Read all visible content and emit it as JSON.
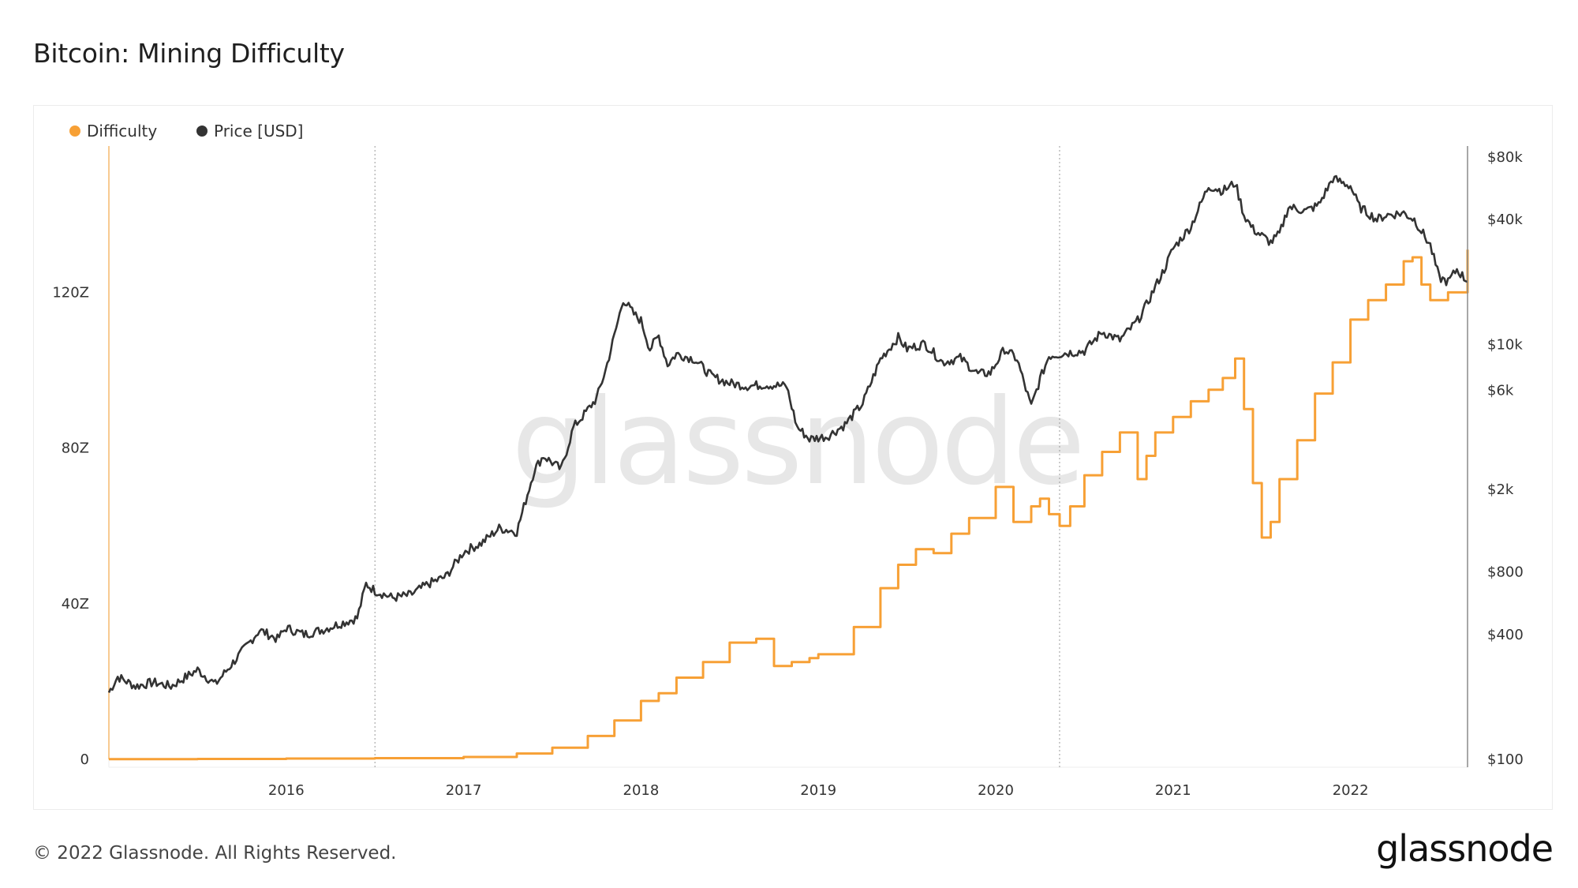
{
  "title": "Bitcoin: Mining Difficulty",
  "legend": {
    "difficulty": "Difficulty",
    "price": "Price [USD]"
  },
  "watermark": "glassnode",
  "footer": {
    "copyright": "© 2022 Glassnode. All Rights Reserved.",
    "logo": "glassnode"
  },
  "colors": {
    "difficulty": "#f7a035",
    "price": "#333333",
    "grid_marker": "#9a9a9a"
  },
  "chart_data": {
    "type": "line",
    "title": "Bitcoin: Mining Difficulty",
    "x_ticks": [
      "2016",
      "2017",
      "2018",
      "2019",
      "2020",
      "2021",
      "2022"
    ],
    "y_left": {
      "ticks": [
        "0",
        "40Z",
        "80Z",
        "120Z"
      ],
      "range": [
        0,
        155
      ],
      "unit": "Z"
    },
    "y_right": {
      "ticks": [
        "$100",
        "$400",
        "$800",
        "$2k",
        "$6k",
        "$10k",
        "$40k",
        "$80k"
      ],
      "scale": "log",
      "range": [
        100,
        80000
      ]
    },
    "x_range": [
      2015.0,
      2022.66
    ],
    "vertical_markers": [
      2016.5,
      2020.36
    ],
    "series": [
      {
        "name": "Difficulty",
        "axis": "left",
        "color": "#f7a035",
        "step": true,
        "x": [
          2015.0,
          2015.5,
          2016.0,
          2016.5,
          2017.0,
          2017.3,
          2017.5,
          2017.7,
          2017.85,
          2018.0,
          2018.1,
          2018.2,
          2018.35,
          2018.5,
          2018.65,
          2018.75,
          2018.85,
          2018.95,
          2019.0,
          2019.2,
          2019.35,
          2019.45,
          2019.55,
          2019.65,
          2019.75,
          2019.85,
          2020.0,
          2020.1,
          2020.2,
          2020.25,
          2020.3,
          2020.36,
          2020.42,
          2020.5,
          2020.6,
          2020.7,
          2020.8,
          2020.85,
          2020.9,
          2021.0,
          2021.1,
          2021.2,
          2021.28,
          2021.35,
          2021.4,
          2021.45,
          2021.5,
          2021.55,
          2021.6,
          2021.7,
          2021.8,
          2021.9,
          2022.0,
          2022.1,
          2022.2,
          2022.3,
          2022.35,
          2022.4,
          2022.45,
          2022.55,
          2022.62,
          2022.66
        ],
        "values": [
          0.05,
          0.1,
          0.2,
          0.3,
          0.6,
          1.5,
          3.0,
          6.0,
          10.0,
          15.0,
          17.0,
          21.0,
          25.0,
          30.0,
          31.0,
          24.0,
          25.0,
          26.0,
          27.0,
          34.0,
          44.0,
          50.0,
          54.0,
          53.0,
          58.0,
          62.0,
          70.0,
          61.0,
          65.0,
          67.0,
          63.0,
          60.0,
          65.0,
          73.0,
          79.0,
          84.0,
          72.0,
          78.0,
          84.0,
          88.0,
          92.0,
          95.0,
          98.0,
          103.0,
          90.0,
          71.0,
          57.0,
          61.0,
          72.0,
          82.0,
          94.0,
          102.0,
          113.0,
          118.0,
          122.0,
          128.0,
          129.0,
          122.0,
          118.0,
          120.0,
          120.0,
          131.0
        ]
      },
      {
        "name": "Price [USD]",
        "axis": "right",
        "color": "#333333",
        "x": [
          2015.0,
          2015.05,
          2015.15,
          2015.25,
          2015.35,
          2015.5,
          2015.6,
          2015.75,
          2015.85,
          2015.95,
          2016.0,
          2016.1,
          2016.2,
          2016.3,
          2016.4,
          2016.45,
          2016.5,
          2016.6,
          2016.7,
          2016.8,
          2016.9,
          2017.0,
          2017.05,
          2017.1,
          2017.2,
          2017.3,
          2017.4,
          2017.45,
          2017.55,
          2017.62,
          2017.68,
          2017.75,
          2017.8,
          2017.85,
          2017.9,
          2017.96,
          2018.0,
          2018.05,
          2018.1,
          2018.15,
          2018.2,
          2018.3,
          2018.4,
          2018.5,
          2018.6,
          2018.7,
          2018.82,
          2018.88,
          2018.95,
          2019.05,
          2019.15,
          2019.25,
          2019.35,
          2019.45,
          2019.5,
          2019.6,
          2019.7,
          2019.8,
          2019.9,
          2019.97,
          2020.05,
          2020.12,
          2020.2,
          2020.25,
          2020.3,
          2020.4,
          2020.5,
          2020.6,
          2020.7,
          2020.8,
          2020.85,
          2020.9,
          2020.95,
          2021.0,
          2021.1,
          2021.2,
          2021.28,
          2021.35,
          2021.4,
          2021.45,
          2021.55,
          2021.6,
          2021.65,
          2021.75,
          2021.82,
          2021.9,
          2022.0,
          2022.05,
          2022.15,
          2022.2,
          2022.3,
          2022.36,
          2022.45,
          2022.5,
          2022.55,
          2022.6,
          2022.66
        ],
        "values": [
          210,
          250,
          225,
          235,
          225,
          270,
          230,
          330,
          420,
          380,
          430,
          400,
          420,
          450,
          480,
          700,
          650,
          600,
          620,
          700,
          760,
          1000,
          1050,
          1100,
          1300,
          1250,
          2500,
          2900,
          2500,
          4000,
          4600,
          5500,
          7500,
          11000,
          16500,
          14000,
          13000,
          9500,
          11000,
          8000,
          9000,
          8500,
          7000,
          6500,
          6300,
          6400,
          6300,
          4000,
          3500,
          3600,
          4100,
          5200,
          8500,
          10800,
          9500,
          10100,
          8200,
          8600,
          7200,
          7300,
          9500,
          8500,
          5000,
          6800,
          8800,
          9100,
          9300,
          11500,
          10500,
          13000,
          15500,
          19000,
          23000,
          29000,
          37000,
          58000,
          55000,
          60000,
          42000,
          36000,
          31000,
          34000,
          46000,
          44000,
          47000,
          63000,
          58000,
          46000,
          40000,
          42000,
          43000,
          40000,
          30000,
          21000,
          20000,
          23000,
          20000
        ]
      }
    ]
  }
}
